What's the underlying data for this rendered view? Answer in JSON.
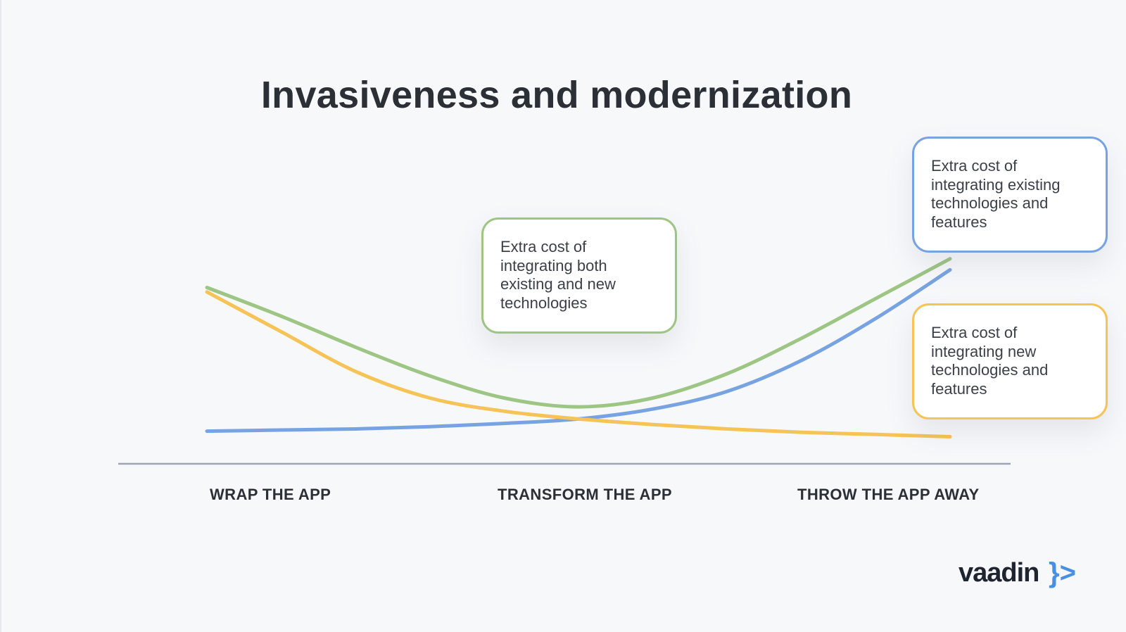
{
  "title": "Invasiveness and modernization",
  "chart_data": {
    "type": "line",
    "categories": [
      "WRAP THE APP",
      "TRANSFORM THE APP",
      "THROW THE APP AWAY"
    ],
    "series": [
      {
        "name": "Extra cost of integrating both existing and new technologies",
        "color": "#9dc583",
        "x": [
          0,
          0.1,
          0.2,
          0.3,
          0.4,
          0.5,
          0.6,
          0.7,
          0.8,
          0.9,
          1.0
        ],
        "y": [
          0.75,
          0.62,
          0.48,
          0.35,
          0.25,
          0.21,
          0.25,
          0.36,
          0.52,
          0.7,
          0.88
        ]
      },
      {
        "name": "Extra cost of integrating existing technologies and features",
        "color": "#78a3e2",
        "x": [
          0,
          0.1,
          0.2,
          0.3,
          0.4,
          0.5,
          0.6,
          0.7,
          0.8,
          0.9,
          1.0
        ],
        "y": [
          0.1,
          0.105,
          0.11,
          0.12,
          0.135,
          0.155,
          0.2,
          0.28,
          0.42,
          0.61,
          0.83
        ]
      },
      {
        "name": "Extra cost of integrating new technologies and features",
        "color": "#f5c356",
        "x": [
          0,
          0.1,
          0.2,
          0.3,
          0.4,
          0.5,
          0.6,
          0.7,
          0.8,
          0.9,
          1.0
        ],
        "y": [
          0.73,
          0.55,
          0.37,
          0.25,
          0.19,
          0.155,
          0.13,
          0.11,
          0.095,
          0.085,
          0.075
        ]
      }
    ],
    "xlabel": "",
    "ylabel": "",
    "ylim": [
      0,
      1
    ],
    "grid": false,
    "legend": "callouts"
  },
  "callouts": {
    "green": "Extra cost of integrating both existing and new technologies",
    "blue": "Extra cost of integrating existing technologies and features",
    "orange": "Extra cost of integrating new technologies and features"
  },
  "axis": {
    "color": "#9aa7bb"
  },
  "logo": {
    "word": "vaadin",
    "mark": "}>",
    "word_color": "#1f2530",
    "mark_color": "#4a90e2"
  }
}
